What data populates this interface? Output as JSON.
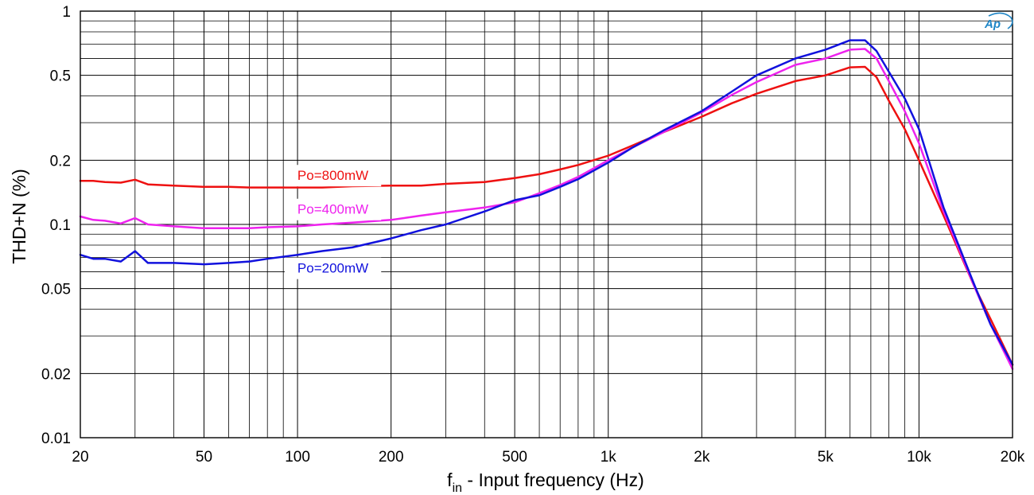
{
  "chart_data": {
    "type": "line",
    "xlabel": "f",
    "xlabel_sub": "in",
    "xlabel_rest": "  - Input frequency (Hz)",
    "ylabel": "THD+N (%)",
    "x_scale": "log",
    "y_scale": "log",
    "xlim": [
      20,
      20000
    ],
    "ylim": [
      0.01,
      1
    ],
    "grid": true,
    "x_ticks": [
      {
        "value": 20,
        "label": "20"
      },
      {
        "value": 50,
        "label": "50"
      },
      {
        "value": 100,
        "label": "100"
      },
      {
        "value": 200,
        "label": "200"
      },
      {
        "value": 500,
        "label": "500"
      },
      {
        "value": 1000,
        "label": "1k"
      },
      {
        "value": 2000,
        "label": "2k"
      },
      {
        "value": 5000,
        "label": "5k"
      },
      {
        "value": 10000,
        "label": "10k"
      },
      {
        "value": 20000,
        "label": "20k"
      }
    ],
    "y_ticks": [
      {
        "value": 0.01,
        "label": "0.01"
      },
      {
        "value": 0.02,
        "label": "0.02"
      },
      {
        "value": 0.05,
        "label": "0.05"
      },
      {
        "value": 0.1,
        "label": "0.1"
      },
      {
        "value": 0.2,
        "label": "0.2"
      },
      {
        "value": 0.5,
        "label": "0.5"
      },
      {
        "value": 1,
        "label": "1"
      }
    ],
    "series": [
      {
        "name": "Po=800mW",
        "color": "#ee1111",
        "label_at": {
          "x": 130,
          "y": 0.17
        },
        "x": [
          20,
          22,
          24,
          27,
          30,
          33,
          40,
          50,
          60,
          70,
          80,
          100,
          120,
          150,
          200,
          250,
          300,
          400,
          500,
          600,
          700,
          800,
          1000,
          1200,
          1500,
          2000,
          2500,
          3000,
          4000,
          5000,
          6000,
          6700,
          7300,
          8000,
          9000,
          10000,
          12000,
          15000,
          17000,
          20000
        ],
        "values": [
          0.16,
          0.16,
          0.158,
          0.157,
          0.162,
          0.154,
          0.152,
          0.15,
          0.15,
          0.149,
          0.149,
          0.149,
          0.149,
          0.151,
          0.152,
          0.152,
          0.155,
          0.158,
          0.165,
          0.172,
          0.181,
          0.19,
          0.21,
          0.235,
          0.27,
          0.32,
          0.37,
          0.41,
          0.47,
          0.5,
          0.545,
          0.548,
          0.49,
          0.38,
          0.28,
          0.2,
          0.11,
          0.052,
          0.036,
          0.022
        ]
      },
      {
        "name": "Po=400mW",
        "color": "#ee22ee",
        "label_at": {
          "x": 130,
          "y": 0.118
        },
        "x": [
          20,
          22,
          24,
          27,
          30,
          33,
          40,
          50,
          60,
          70,
          80,
          100,
          120,
          150,
          200,
          250,
          300,
          400,
          500,
          600,
          700,
          800,
          1000,
          1200,
          1500,
          2000,
          2500,
          3000,
          4000,
          5000,
          6000,
          6700,
          7300,
          8000,
          9000,
          10000,
          12000,
          15000,
          17000,
          20000
        ],
        "values": [
          0.109,
          0.105,
          0.104,
          0.101,
          0.107,
          0.1,
          0.098,
          0.096,
          0.096,
          0.096,
          0.097,
          0.098,
          0.1,
          0.102,
          0.105,
          0.11,
          0.114,
          0.12,
          0.127,
          0.14,
          0.153,
          0.167,
          0.2,
          0.23,
          0.27,
          0.335,
          0.405,
          0.465,
          0.56,
          0.6,
          0.66,
          0.665,
          0.6,
          0.47,
          0.34,
          0.24,
          0.115,
          0.052,
          0.034,
          0.021
        ]
      },
      {
        "name": "Po=200mW",
        "color": "#1111dd",
        "label_at": {
          "x": 130,
          "y": 0.0625
        },
        "x": [
          20,
          22,
          24,
          27,
          30,
          33,
          40,
          50,
          60,
          70,
          80,
          100,
          120,
          150,
          200,
          250,
          300,
          400,
          500,
          600,
          700,
          800,
          1000,
          1200,
          1500,
          2000,
          2500,
          3000,
          4000,
          5000,
          6000,
          6700,
          7300,
          8000,
          9000,
          10000,
          12000,
          15000,
          17000,
          20000
        ],
        "values": [
          0.072,
          0.069,
          0.069,
          0.067,
          0.075,
          0.066,
          0.066,
          0.065,
          0.066,
          0.067,
          0.069,
          0.072,
          0.075,
          0.078,
          0.086,
          0.094,
          0.1,
          0.115,
          0.13,
          0.137,
          0.15,
          0.163,
          0.195,
          0.23,
          0.275,
          0.34,
          0.42,
          0.5,
          0.6,
          0.66,
          0.73,
          0.73,
          0.65,
          0.52,
          0.39,
          0.28,
          0.12,
          0.053,
          0.034,
          0.022
        ]
      }
    ],
    "logo": "Ap"
  }
}
